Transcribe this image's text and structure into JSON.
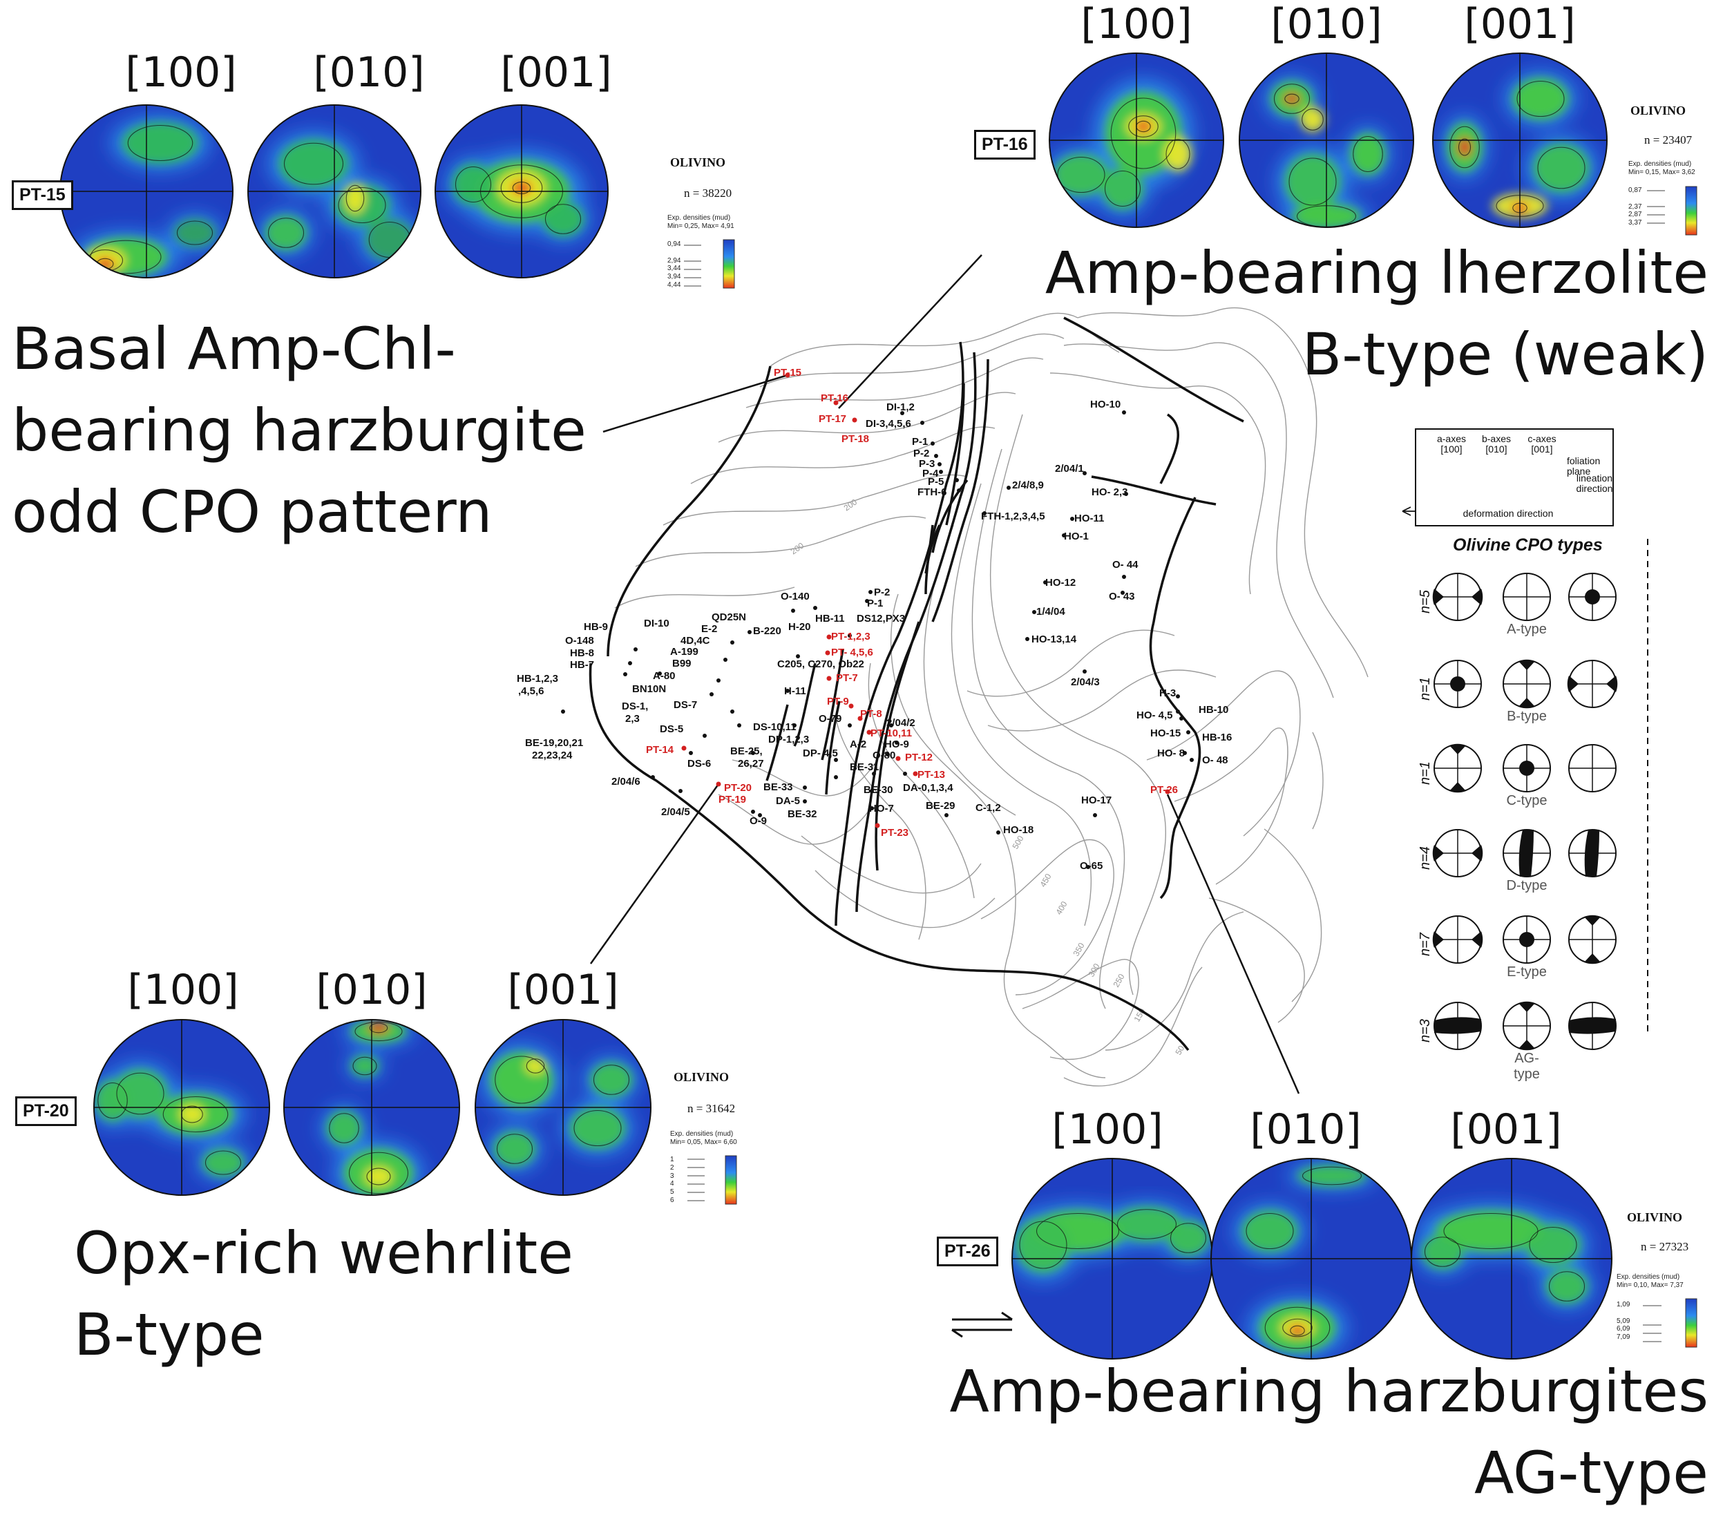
{
  "axes_labels": [
    "[100]",
    "[010]",
    "[001]"
  ],
  "panels": {
    "pt15": {
      "sample": "PT-15",
      "olivino": "OLIVINO",
      "n": "n = 38220",
      "exp": "Exp. densities (mud)",
      "minmax": "Min= 0,25, Max= 4,91",
      "scale_values": [
        "0,94",
        "2,94",
        "3,44",
        "3,94",
        "4,44"
      ],
      "caption": [
        "Basal Amp-Chl-",
        "bearing harzburgite",
        "odd CPO pattern"
      ]
    },
    "pt16": {
      "sample": "PT-16",
      "olivino": "OLIVINO",
      "n": "n = 23407",
      "exp": "Exp. densities (mud)",
      "minmax": "Min= 0,15, Max= 3,62",
      "scale_values": [
        "0,87",
        "2,37",
        "2,87",
        "3,37"
      ],
      "caption": [
        "Amp-bearing lherzolite",
        "B-type (weak)"
      ]
    },
    "pt20": {
      "sample": "PT-20",
      "olivino": "OLIVINO",
      "n": "n = 31642",
      "exp": "Exp. densities (mud)",
      "minmax": "Min= 0,05, Max= 6,60",
      "scale_values": [
        "1",
        "2",
        "3",
        "4",
        "5",
        "6"
      ],
      "caption": [
        "Opx-rich wehrlite",
        "B-type"
      ]
    },
    "pt26": {
      "sample": "PT-26",
      "olivino": "OLIVINO",
      "n": "n = 27323",
      "exp": "Exp. densities (mud)",
      "minmax": "Min= 0,10, Max= 7,37",
      "scale_values": [
        "1,09",
        "5,09",
        "6,09",
        "7,09"
      ],
      "caption": [
        "Amp-bearing harzburgites",
        "AG-type"
      ]
    }
  },
  "legend": {
    "a_axes": "a-axes",
    "a_idx": "[100]",
    "b_axes": "b-axes",
    "b_idx": "[010]",
    "c_axes": "c-axes",
    "c_idx": "[001]",
    "foliation": "foliation plane",
    "lineation": "lineation direction",
    "deformation": "deformation direction",
    "cpo_title": "Olivine CPO types",
    "types": [
      {
        "n": "n=5",
        "name": "A-type"
      },
      {
        "n": "n=1",
        "name": "B-type"
      },
      {
        "n": "n=1",
        "name": "C-type"
      },
      {
        "n": "n=4",
        "name": "D-type"
      },
      {
        "n": "n=7",
        "name": "E-type"
      },
      {
        "n": "n=3",
        "name": "AG-type"
      }
    ]
  },
  "map_labels": {
    "red": [
      "PT-15",
      "PT-16",
      "PT-17",
      "PT-18",
      "PT-1,2,3",
      "PT- 4,5,6",
      "PT-7",
      "PT-9",
      "PT-8",
      "PT-10,11",
      "PT-12",
      "PT-13",
      "PT-14",
      "PT-20",
      "PT-19",
      "PT-23",
      "PT-26"
    ],
    "black": [
      "DI-1,2",
      "DI-3,4,5,6",
      "P-1",
      "P-2",
      "P-3",
      "P-4",
      "P-5",
      "FTH-6",
      "FTH-1,2,3,4,5",
      "HO-10",
      "2/04/1",
      "2/4/8,9",
      "HO- 2,3",
      "HO-11",
      "HO-1",
      "O- 44",
      "O- 43",
      "HO-12",
      "1/4/04",
      "HO-13,14",
      "2/04/3",
      "H-3",
      "HB-10",
      "HO- 4,5",
      "HO-15",
      "HB-16",
      "HO- 8",
      "O- 48",
      "HO-17",
      "O-65",
      "C-1,2",
      "HO-18",
      "BE-29",
      "DA-0,1,3,4",
      "HO-7",
      "BE-30",
      "BE-31",
      "O-80",
      "HO-9",
      "A-2",
      "2/04/2",
      "O-79",
      "DP-1,2,3",
      "DP- 4,5",
      "BE-33",
      "DA-5",
      "BE-32",
      "O-9",
      "BE-25, 26,27",
      "DS-10,11",
      "H-11",
      "C205, C270, Ob22",
      "DS12,PX3",
      "P-2",
      "P-1",
      "HB-11",
      "H-20",
      "O-140",
      "B-220",
      "QD25N",
      "E-2",
      "4D,4C",
      "A-199",
      "B99",
      "A-80",
      "BN10N",
      "DS-7",
      "DS-5",
      "DS-6",
      "DS-1, 2,3",
      "DI-10",
      "HB-9",
      "O-148",
      "HB-8",
      "HB-7",
      "HB-1,2,3 ,4,5,6",
      "BE-19,20,21 22,23,24",
      "2/04/6",
      "2/04/5"
    ],
    "contours": [
      "200",
      "200",
      "450",
      "400",
      "350",
      "300",
      "250",
      "150",
      "50",
      "500"
    ]
  }
}
